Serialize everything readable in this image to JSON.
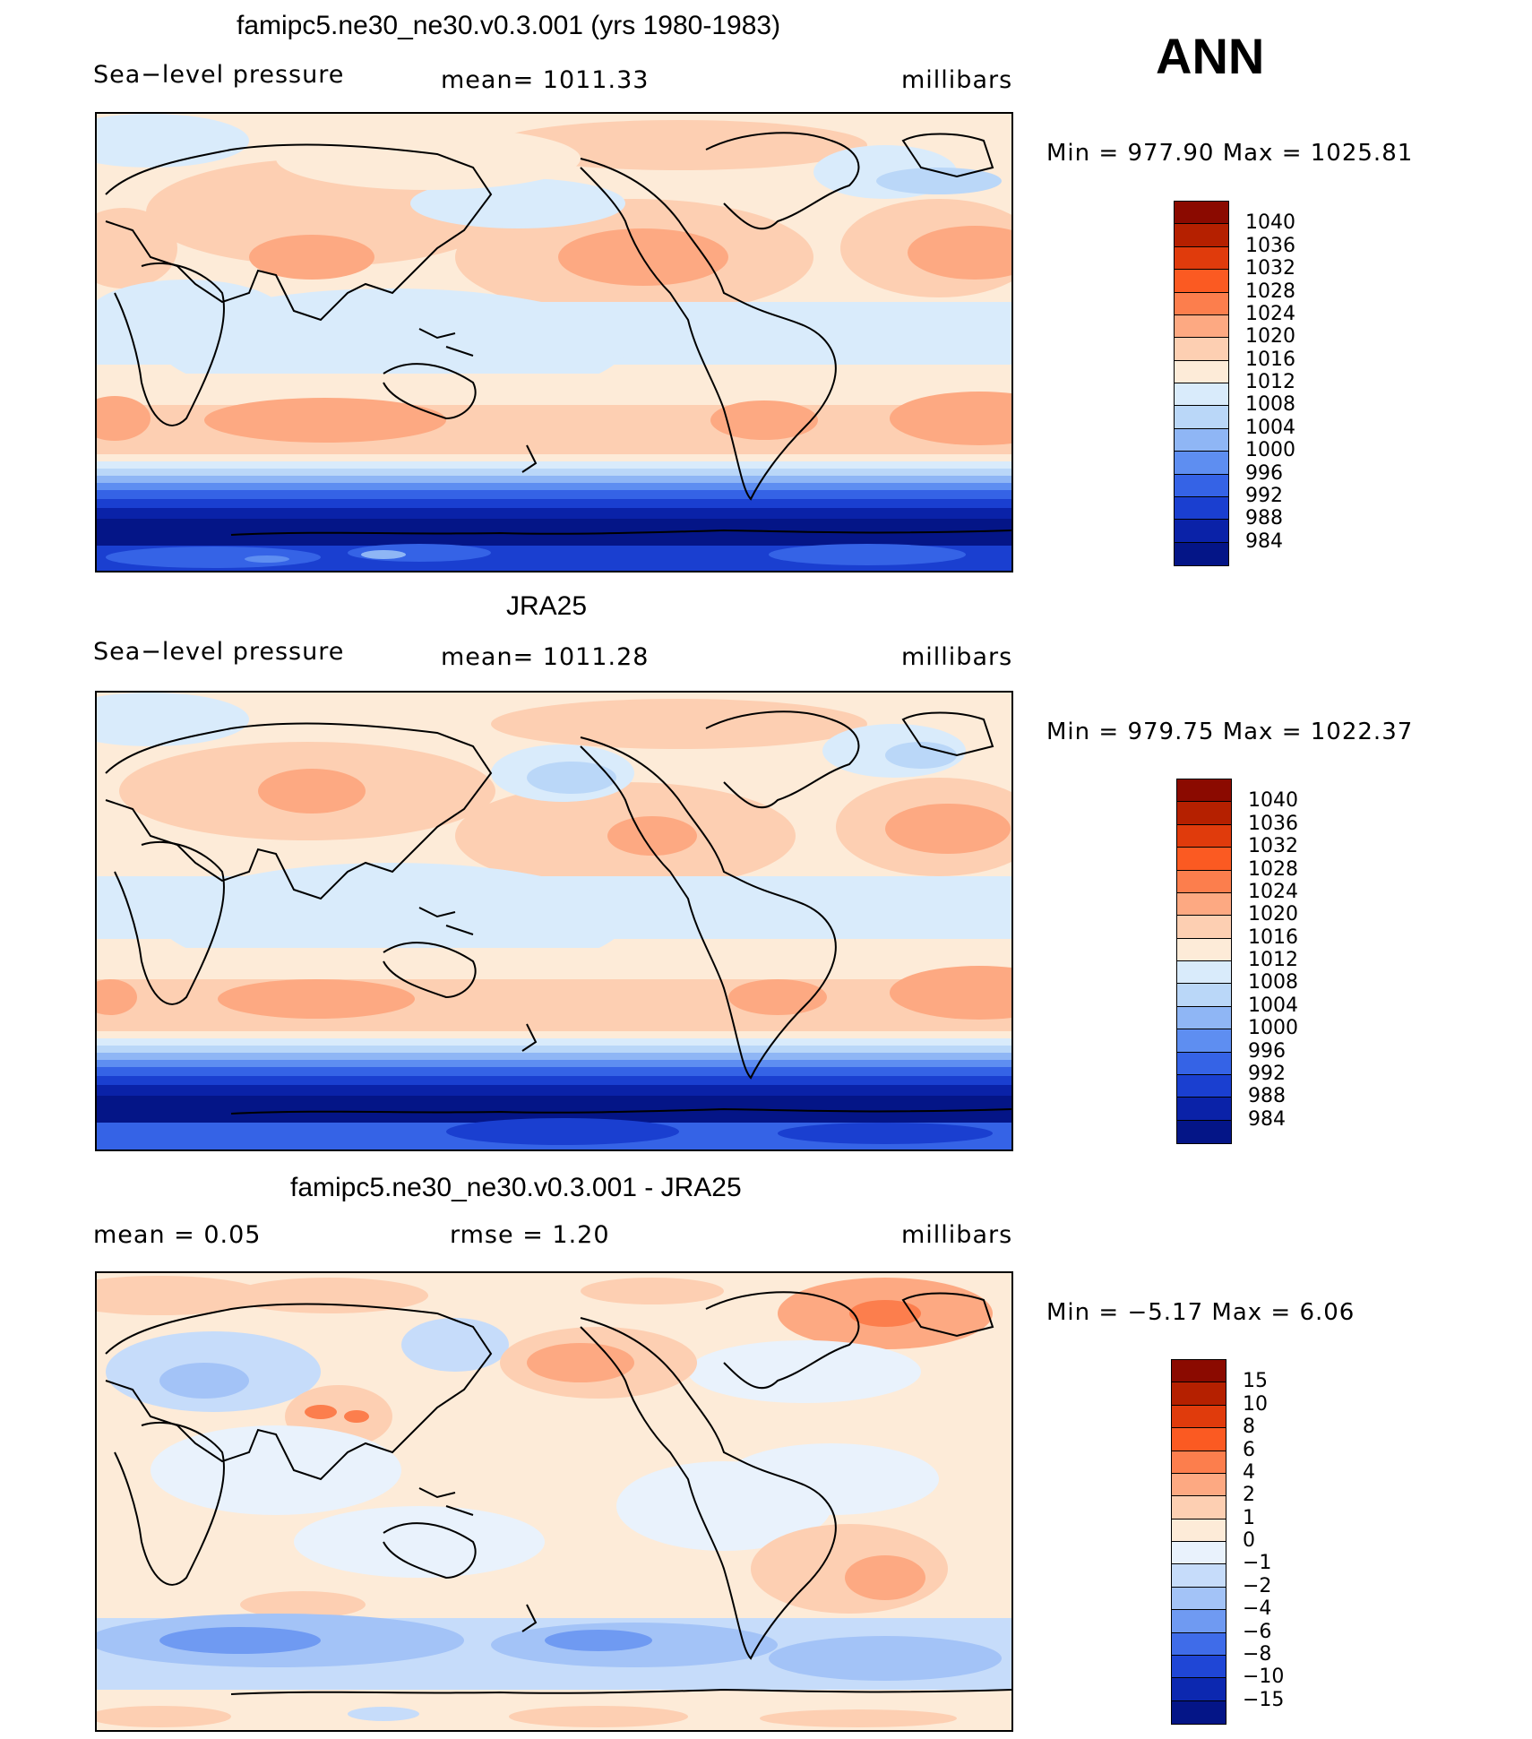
{
  "season": "ANN",
  "panels": [
    {
      "title": "famipc5.ne30_ne30.v0.3.001 (yrs 1980-1983)",
      "left_label": "Sea−level pressure",
      "center_label": "mean=  1011.33",
      "right_label": "millibars",
      "minmax": "Min  =  977.90  Max  =  1025.81",
      "kind": "abs"
    },
    {
      "title": "JRA25",
      "left_label": "Sea−level pressure",
      "center_label": "mean=  1011.28",
      "right_label": "millibars",
      "minmax": "Min  =  979.75  Max  =  1022.37",
      "kind": "abs"
    },
    {
      "title": "famipc5.ne30_ne30.v0.3.001 - JRA25",
      "left_label": "mean  =      0.05",
      "center_label": "rmse  =      1.20",
      "right_label": "millibars",
      "minmax": "Min  =   −5.17  Max  =      6.06",
      "kind": "diff"
    }
  ],
  "colorbars": {
    "abs": {
      "labels": [
        "1040",
        "1036",
        "1032",
        "1028",
        "1024",
        "1020",
        "1016",
        "1012",
        "1008",
        "1004",
        "1000",
        "996",
        "992",
        "988",
        "984"
      ],
      "colors": [
        "#8b0a00",
        "#b52000",
        "#e03b0c",
        "#fb5a22",
        "#fc7e4d",
        "#fda982",
        "#fdcfb2",
        "#fdebd8",
        "#d9ebfb",
        "#bad7f8",
        "#8fb6f5",
        "#5e8ef1",
        "#3563e6",
        "#1a3fd0",
        "#0a22a8",
        "#041587"
      ]
    },
    "diff": {
      "labels": [
        "15",
        "10",
        "8",
        "6",
        "4",
        "2",
        "1",
        "0",
        "−1",
        "−2",
        "−4",
        "−6",
        "−8",
        "−10",
        "−15"
      ],
      "colors": [
        "#8b0a00",
        "#b52000",
        "#e03b0c",
        "#fb5a22",
        "#fc7e4d",
        "#fda982",
        "#fdcfb2",
        "#fdebd8",
        "#e9f2fc",
        "#c6dcfa",
        "#a3c3f7",
        "#6f9af2",
        "#3f6ce9",
        "#1f46d6",
        "#0c28b0",
        "#041587"
      ]
    }
  }
}
